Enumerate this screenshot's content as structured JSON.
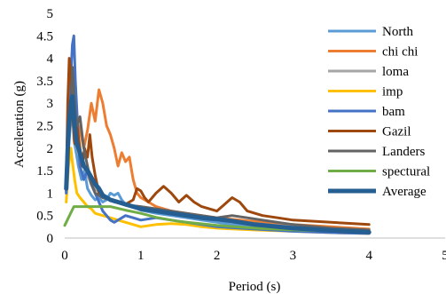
{
  "chart_data": {
    "type": "line",
    "title": "",
    "xlabel": "Period (s)",
    "ylabel": "Acceleration  (g)",
    "xlim": [
      0,
      5
    ],
    "ylim": [
      0,
      5
    ],
    "x_ticks": [
      "0",
      "1",
      "2",
      "3",
      "4",
      "5"
    ],
    "y_ticks": [
      "0",
      "0.5",
      "1",
      "1.5",
      "2",
      "2.5",
      "3",
      "3.5",
      "4",
      "4.5",
      "5"
    ],
    "grid": false,
    "legend_position": "right",
    "series": [
      {
        "name": "North",
        "color": "#5b9bd5",
        "width": 3,
        "points": [
          [
            0.02,
            1.2
          ],
          [
            0.05,
            2.0
          ],
          [
            0.08,
            2.6
          ],
          [
            0.1,
            3.0
          ],
          [
            0.12,
            2.2
          ],
          [
            0.15,
            1.9
          ],
          [
            0.18,
            1.6
          ],
          [
            0.22,
            1.3
          ],
          [
            0.26,
            1.5
          ],
          [
            0.3,
            1.1
          ],
          [
            0.35,
            0.95
          ],
          [
            0.4,
            0.85
          ],
          [
            0.45,
            0.9
          ],
          [
            0.5,
            0.8
          ],
          [
            0.55,
            0.85
          ],
          [
            0.6,
            1.0
          ],
          [
            0.65,
            0.95
          ],
          [
            0.7,
            1.0
          ],
          [
            0.75,
            0.85
          ],
          [
            0.8,
            0.75
          ],
          [
            0.9,
            0.7
          ],
          [
            1.0,
            0.62
          ],
          [
            1.2,
            0.55
          ],
          [
            1.4,
            0.5
          ],
          [
            1.6,
            0.45
          ],
          [
            1.8,
            0.4
          ],
          [
            2.0,
            0.35
          ],
          [
            2.2,
            0.3
          ],
          [
            2.5,
            0.25
          ],
          [
            3.0,
            0.18
          ],
          [
            3.5,
            0.14
          ],
          [
            4.0,
            0.12
          ]
        ]
      },
      {
        "name": "chi chi",
        "color": "#ed7d31",
        "width": 3,
        "points": [
          [
            0.02,
            1.0
          ],
          [
            0.05,
            2.5
          ],
          [
            0.08,
            3.4
          ],
          [
            0.1,
            2.8
          ],
          [
            0.13,
            2.2
          ],
          [
            0.16,
            2.6
          ],
          [
            0.2,
            2.4
          ],
          [
            0.25,
            2.0
          ],
          [
            0.3,
            2.4
          ],
          [
            0.35,
            3.0
          ],
          [
            0.4,
            2.6
          ],
          [
            0.45,
            3.3
          ],
          [
            0.5,
            3.0
          ],
          [
            0.55,
            2.5
          ],
          [
            0.6,
            2.3
          ],
          [
            0.65,
            2.0
          ],
          [
            0.7,
            1.6
          ],
          [
            0.75,
            1.9
          ],
          [
            0.8,
            1.7
          ],
          [
            0.85,
            1.8
          ],
          [
            0.9,
            1.3
          ],
          [
            0.95,
            1.0
          ],
          [
            1.0,
            0.9
          ],
          [
            1.1,
            0.8
          ],
          [
            1.2,
            0.7
          ],
          [
            1.4,
            0.6
          ],
          [
            1.6,
            0.55
          ],
          [
            1.8,
            0.5
          ],
          [
            2.0,
            0.45
          ],
          [
            2.3,
            0.4
          ],
          [
            2.6,
            0.35
          ],
          [
            3.0,
            0.3
          ],
          [
            3.5,
            0.25
          ],
          [
            4.0,
            0.2
          ]
        ]
      },
      {
        "name": "loma",
        "color": "#a5a5a5",
        "width": 3,
        "points": [
          [
            0.02,
            1.1
          ],
          [
            0.05,
            2.4
          ],
          [
            0.08,
            3.1
          ],
          [
            0.1,
            2.9
          ],
          [
            0.13,
            2.3
          ],
          [
            0.16,
            2.0
          ],
          [
            0.2,
            1.8
          ],
          [
            0.25,
            1.6
          ],
          [
            0.3,
            1.4
          ],
          [
            0.35,
            1.2
          ],
          [
            0.4,
            1.1
          ],
          [
            0.5,
            0.95
          ],
          [
            0.6,
            0.85
          ],
          [
            0.7,
            0.8
          ],
          [
            0.8,
            0.75
          ],
          [
            0.9,
            0.7
          ],
          [
            1.0,
            0.65
          ],
          [
            1.2,
            0.6
          ],
          [
            1.4,
            0.55
          ],
          [
            1.6,
            0.5
          ],
          [
            1.8,
            0.45
          ],
          [
            2.0,
            0.42
          ],
          [
            2.2,
            0.38
          ],
          [
            2.5,
            0.32
          ],
          [
            3.0,
            0.25
          ],
          [
            3.5,
            0.2
          ],
          [
            4.0,
            0.15
          ]
        ]
      },
      {
        "name": "imp",
        "color": "#ffc000",
        "width": 3,
        "points": [
          [
            0.02,
            0.8
          ],
          [
            0.05,
            1.6
          ],
          [
            0.08,
            2.0
          ],
          [
            0.1,
            1.7
          ],
          [
            0.13,
            1.3
          ],
          [
            0.16,
            1.0
          ],
          [
            0.2,
            0.9
          ],
          [
            0.25,
            0.8
          ],
          [
            0.3,
            0.7
          ],
          [
            0.35,
            0.65
          ],
          [
            0.4,
            0.55
          ],
          [
            0.5,
            0.5
          ],
          [
            0.6,
            0.45
          ],
          [
            0.7,
            0.4
          ],
          [
            0.8,
            0.35
          ],
          [
            0.9,
            0.3
          ],
          [
            1.0,
            0.25
          ],
          [
            1.2,
            0.3
          ],
          [
            1.4,
            0.32
          ],
          [
            1.6,
            0.3
          ],
          [
            1.8,
            0.25
          ],
          [
            2.0,
            0.22
          ],
          [
            2.5,
            0.18
          ],
          [
            3.0,
            0.15
          ],
          [
            3.5,
            0.12
          ],
          [
            4.0,
            0.1
          ]
        ]
      },
      {
        "name": "bam",
        "color": "#4472c4",
        "width": 3,
        "points": [
          [
            0.02,
            1.0
          ],
          [
            0.05,
            2.6
          ],
          [
            0.08,
            3.6
          ],
          [
            0.1,
            4.3
          ],
          [
            0.12,
            4.5
          ],
          [
            0.14,
            3.5
          ],
          [
            0.17,
            2.5
          ],
          [
            0.2,
            1.6
          ],
          [
            0.25,
            1.3
          ],
          [
            0.3,
            1.5
          ],
          [
            0.35,
            1.2
          ],
          [
            0.4,
            1.0
          ],
          [
            0.45,
            0.8
          ],
          [
            0.5,
            0.6
          ],
          [
            0.55,
            0.5
          ],
          [
            0.6,
            0.4
          ],
          [
            0.65,
            0.35
          ],
          [
            0.7,
            0.4
          ],
          [
            0.8,
            0.5
          ],
          [
            0.9,
            0.45
          ],
          [
            1.0,
            0.4
          ],
          [
            1.2,
            0.45
          ],
          [
            1.4,
            0.4
          ],
          [
            1.6,
            0.35
          ],
          [
            1.8,
            0.3
          ],
          [
            2.0,
            0.25
          ],
          [
            2.5,
            0.2
          ],
          [
            3.0,
            0.15
          ],
          [
            3.5,
            0.12
          ],
          [
            4.0,
            0.1
          ]
        ]
      },
      {
        "name": "Gazil",
        "color": "#9e480e",
        "width": 3,
        "points": [
          [
            0.02,
            1.2
          ],
          [
            0.04,
            3.0
          ],
          [
            0.06,
            4.0
          ],
          [
            0.08,
            3.7
          ],
          [
            0.1,
            2.8
          ],
          [
            0.13,
            2.1
          ],
          [
            0.16,
            2.5
          ],
          [
            0.2,
            2.0
          ],
          [
            0.23,
            1.6
          ],
          [
            0.26,
            2.0
          ],
          [
            0.3,
            1.8
          ],
          [
            0.33,
            2.3
          ],
          [
            0.36,
            1.8
          ],
          [
            0.4,
            1.4
          ],
          [
            0.45,
            1.0
          ],
          [
            0.5,
            0.9
          ],
          [
            0.6,
            0.85
          ],
          [
            0.7,
            0.8
          ],
          [
            0.8,
            0.75
          ],
          [
            0.9,
            0.85
          ],
          [
            0.95,
            1.1
          ],
          [
            1.0,
            1.05
          ],
          [
            1.05,
            0.9
          ],
          [
            1.1,
            0.8
          ],
          [
            1.2,
            1.0
          ],
          [
            1.3,
            1.15
          ],
          [
            1.4,
            1.0
          ],
          [
            1.5,
            0.8
          ],
          [
            1.6,
            0.95
          ],
          [
            1.7,
            0.8
          ],
          [
            1.8,
            0.7
          ],
          [
            1.9,
            0.65
          ],
          [
            2.0,
            0.6
          ],
          [
            2.1,
            0.75
          ],
          [
            2.2,
            0.9
          ],
          [
            2.3,
            0.8
          ],
          [
            2.4,
            0.6
          ],
          [
            2.6,
            0.5
          ],
          [
            2.8,
            0.45
          ],
          [
            3.0,
            0.4
          ],
          [
            3.5,
            0.35
          ],
          [
            4.0,
            0.3
          ]
        ]
      },
      {
        "name": "Landers",
        "color": "#636363",
        "width": 3,
        "points": [
          [
            0.02,
            1.2
          ],
          [
            0.05,
            2.2
          ],
          [
            0.08,
            2.8
          ],
          [
            0.1,
            3.8
          ],
          [
            0.13,
            3.0
          ],
          [
            0.16,
            2.5
          ],
          [
            0.2,
            2.7
          ],
          [
            0.25,
            2.0
          ],
          [
            0.3,
            1.6
          ],
          [
            0.35,
            1.2
          ],
          [
            0.4,
            1.0
          ],
          [
            0.5,
            0.9
          ],
          [
            0.6,
            0.85
          ],
          [
            0.7,
            0.8
          ],
          [
            0.8,
            0.75
          ],
          [
            0.9,
            0.72
          ],
          [
            1.0,
            0.7
          ],
          [
            1.2,
            0.65
          ],
          [
            1.4,
            0.6
          ],
          [
            1.6,
            0.55
          ],
          [
            1.8,
            0.5
          ],
          [
            2.0,
            0.45
          ],
          [
            2.2,
            0.5
          ],
          [
            2.4,
            0.45
          ],
          [
            2.6,
            0.4
          ],
          [
            3.0,
            0.3
          ],
          [
            3.5,
            0.22
          ],
          [
            4.0,
            0.18
          ]
        ]
      },
      {
        "name": "spectural",
        "color": "#70ad47",
        "width": 3,
        "points": [
          [
            0.0,
            0.28
          ],
          [
            0.12,
            0.7
          ],
          [
            0.6,
            0.7
          ],
          [
            0.8,
            0.62
          ],
          [
            1.0,
            0.55
          ],
          [
            1.2,
            0.46
          ],
          [
            1.5,
            0.37
          ],
          [
            2.0,
            0.28
          ],
          [
            2.5,
            0.22
          ],
          [
            3.0,
            0.18
          ],
          [
            3.5,
            0.16
          ],
          [
            4.0,
            0.14
          ]
        ]
      },
      {
        "name": "Average",
        "color": "#255e91",
        "width": 5,
        "points": [
          [
            0.02,
            1.1
          ],
          [
            0.05,
            2.4
          ],
          [
            0.08,
            3.0
          ],
          [
            0.1,
            3.15
          ],
          [
            0.13,
            2.5
          ],
          [
            0.16,
            2.1
          ],
          [
            0.2,
            1.9
          ],
          [
            0.25,
            1.6
          ],
          [
            0.3,
            1.5
          ],
          [
            0.35,
            1.35
          ],
          [
            0.4,
            1.2
          ],
          [
            0.45,
            1.1
          ],
          [
            0.5,
            0.95
          ],
          [
            0.6,
            0.85
          ],
          [
            0.7,
            0.8
          ],
          [
            0.8,
            0.75
          ],
          [
            0.9,
            0.7
          ],
          [
            1.0,
            0.65
          ],
          [
            1.2,
            0.6
          ],
          [
            1.4,
            0.55
          ],
          [
            1.6,
            0.5
          ],
          [
            1.8,
            0.45
          ],
          [
            2.0,
            0.42
          ],
          [
            2.2,
            0.38
          ],
          [
            2.5,
            0.3
          ],
          [
            3.0,
            0.22
          ],
          [
            3.5,
            0.17
          ],
          [
            4.0,
            0.13
          ]
        ]
      }
    ]
  }
}
